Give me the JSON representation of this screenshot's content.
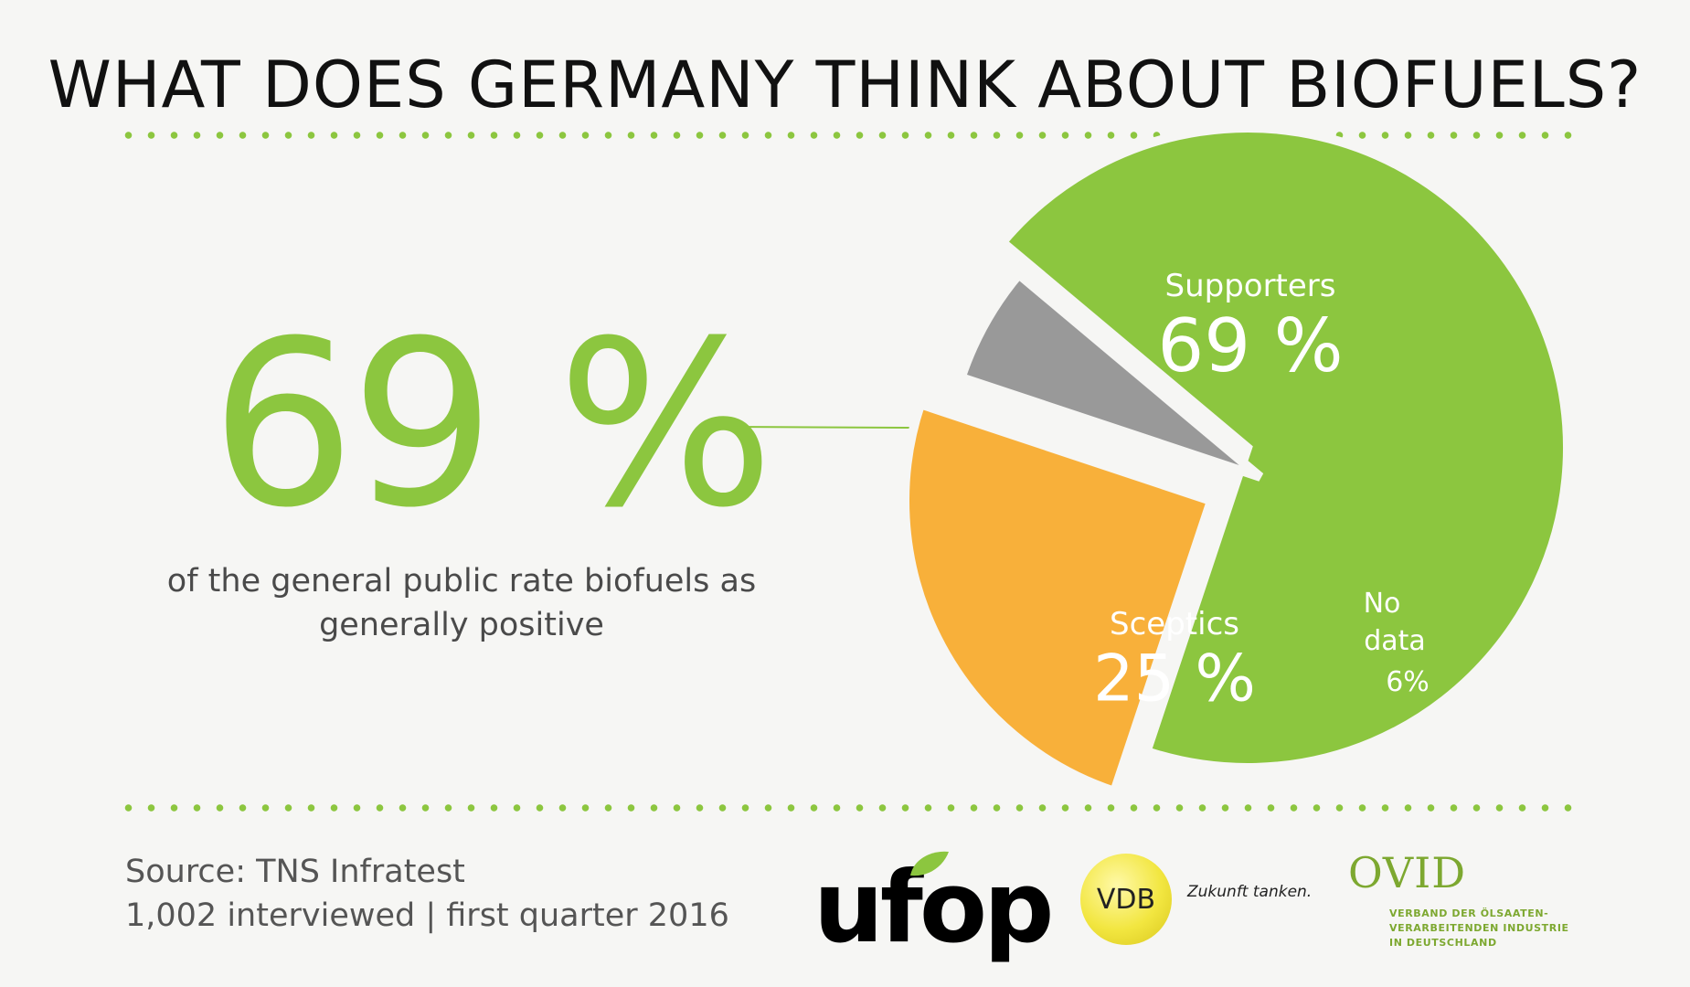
{
  "title": "WHAT DOES GERMANY THINK ABOUT BIOFUELS?",
  "headline_value": "69 %",
  "headline_text": "of the general public rate biofuels as generally positive",
  "source_line1": "Source: TNS Infratest",
  "source_line2": "1,002 interviewed | first quarter 2016",
  "logos": {
    "ufop": "ufop",
    "vdb": "VDB",
    "vdb_tagline": "Zukunft tanken.",
    "ovid": "OVID",
    "ovid_line1": "VERBAND DER ÖLSAATEN-",
    "ovid_line2": "VERARBEITENDEN INDUSTRIE",
    "ovid_line3": "IN DEUTSCHLAND"
  },
  "colors": {
    "accent": "#8cc63f",
    "supporters": "#8cc63f",
    "sceptics": "#f8b03a",
    "no_data": "#999999"
  },
  "chart_data": {
    "type": "pie",
    "slices": [
      {
        "label": "Supporters",
        "value": 69,
        "display": "69 %",
        "color": "#8cc63f"
      },
      {
        "label": "Sceptics",
        "value": 25,
        "display": "25 %",
        "color": "#f8b03a"
      },
      {
        "label": "No data",
        "value": 6,
        "display": "6%",
        "color": "#999999"
      }
    ]
  }
}
